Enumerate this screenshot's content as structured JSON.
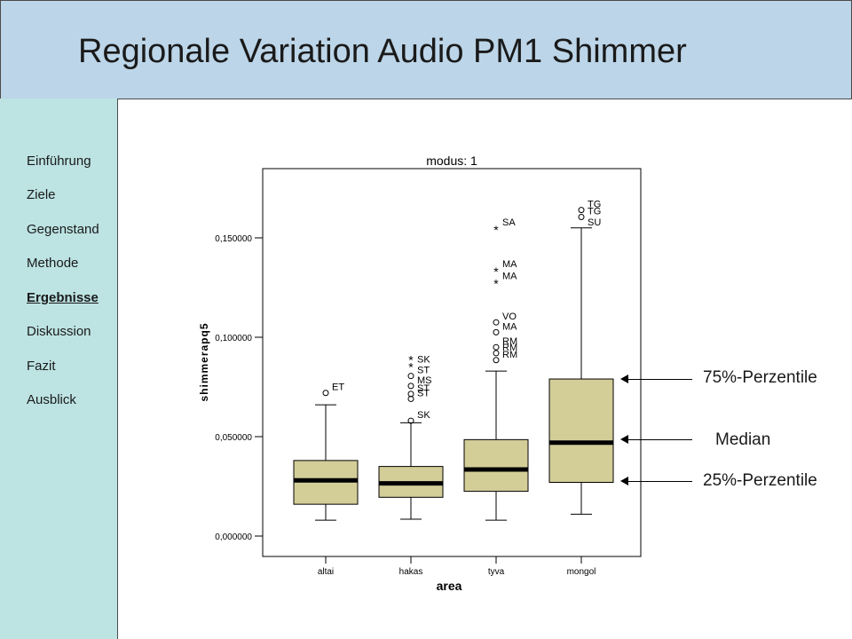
{
  "slide": {
    "title": "Regionale Variation Audio PM1 Shimmer"
  },
  "nav": {
    "items": [
      {
        "label": "Einführung",
        "active": false
      },
      {
        "label": "Ziele",
        "active": false
      },
      {
        "label": "Gegenstand",
        "active": false
      },
      {
        "label": "Methode",
        "active": false
      },
      {
        "label": "Ergebnisse",
        "active": true
      },
      {
        "label": "Diskussion",
        "active": false
      },
      {
        "label": "Fazit",
        "active": false
      },
      {
        "label": "Ausblick",
        "active": false
      }
    ]
  },
  "annotations": {
    "q3_label": "75%-Perzentile",
    "median_label": "Median",
    "q1_label": "25%-Perzentile"
  },
  "colors": {
    "header_bg": "#bcd5e8",
    "sidebar_bg": "#bde3e3",
    "box_fill": "#d3cd98"
  },
  "chart_data": {
    "type": "box",
    "title": "modus: 1",
    "xlabel": "area",
    "ylabel": "shimmerapq5",
    "ylim": [
      -0.012,
      0.186
    ],
    "yticks": [
      0.0,
      0.05,
      0.1,
      0.15
    ],
    "ytick_labels": [
      "0,000000",
      "0,050000",
      "0,100000",
      "0,150000"
    ],
    "categories": [
      "altai",
      "hakas",
      "tyva",
      "mongol"
    ],
    "boxes": [
      {
        "category": "altai",
        "min": 0.008,
        "q1": 0.016,
        "median": 0.028,
        "q3": 0.038,
        "max": 0.066
      },
      {
        "category": "hakas",
        "min": 0.0085,
        "q1": 0.0195,
        "median": 0.0265,
        "q3": 0.035,
        "max": 0.057
      },
      {
        "category": "tyva",
        "min": 0.008,
        "q1": 0.0225,
        "median": 0.0335,
        "q3": 0.0485,
        "max": 0.083
      },
      {
        "category": "mongol",
        "min": 0.011,
        "q1": 0.027,
        "median": 0.047,
        "q3": 0.079,
        "max": 0.155
      }
    ],
    "outliers": [
      {
        "category": "altai",
        "value": 0.072,
        "marker": "o",
        "label": "ET"
      },
      {
        "category": "hakas",
        "value": 0.058,
        "marker": "o",
        "label": "SK"
      },
      {
        "category": "hakas",
        "value": 0.069,
        "marker": "o",
        "label": "ST"
      },
      {
        "category": "hakas",
        "value": 0.0715,
        "marker": "o",
        "label": "ST"
      },
      {
        "category": "hakas",
        "value": 0.0755,
        "marker": "o",
        "label": "MS"
      },
      {
        "category": "hakas",
        "value": 0.0805,
        "marker": "o",
        "label": "ST"
      },
      {
        "category": "hakas",
        "value": 0.086,
        "marker": "*",
        "label": "SK"
      },
      {
        "category": "hakas",
        "value": 0.0895,
        "marker": "*",
        "label": ""
      },
      {
        "category": "tyva",
        "value": 0.0885,
        "marker": "o",
        "label": "RM"
      },
      {
        "category": "tyva",
        "value": 0.092,
        "marker": "o",
        "label": "RM"
      },
      {
        "category": "tyva",
        "value": 0.095,
        "marker": "o",
        "label": "RM"
      },
      {
        "category": "tyva",
        "value": 0.1025,
        "marker": "o",
        "label": "MA"
      },
      {
        "category": "tyva",
        "value": 0.1075,
        "marker": "o",
        "label": "VO"
      },
      {
        "category": "tyva",
        "value": 0.128,
        "marker": "*",
        "label": "MA"
      },
      {
        "category": "tyva",
        "value": 0.134,
        "marker": "*",
        "label": "MA"
      },
      {
        "category": "tyva",
        "value": 0.155,
        "marker": "*",
        "label": "SA"
      },
      {
        "category": "mongol",
        "value": 0.1605,
        "marker": "o",
        "label": "TG"
      },
      {
        "category": "mongol",
        "value": 0.164,
        "marker": "o",
        "label": "TG"
      },
      {
        "category": "mongol",
        "value": 0.155,
        "marker": "",
        "label": "SU"
      }
    ],
    "grid": false,
    "legend": "none"
  }
}
